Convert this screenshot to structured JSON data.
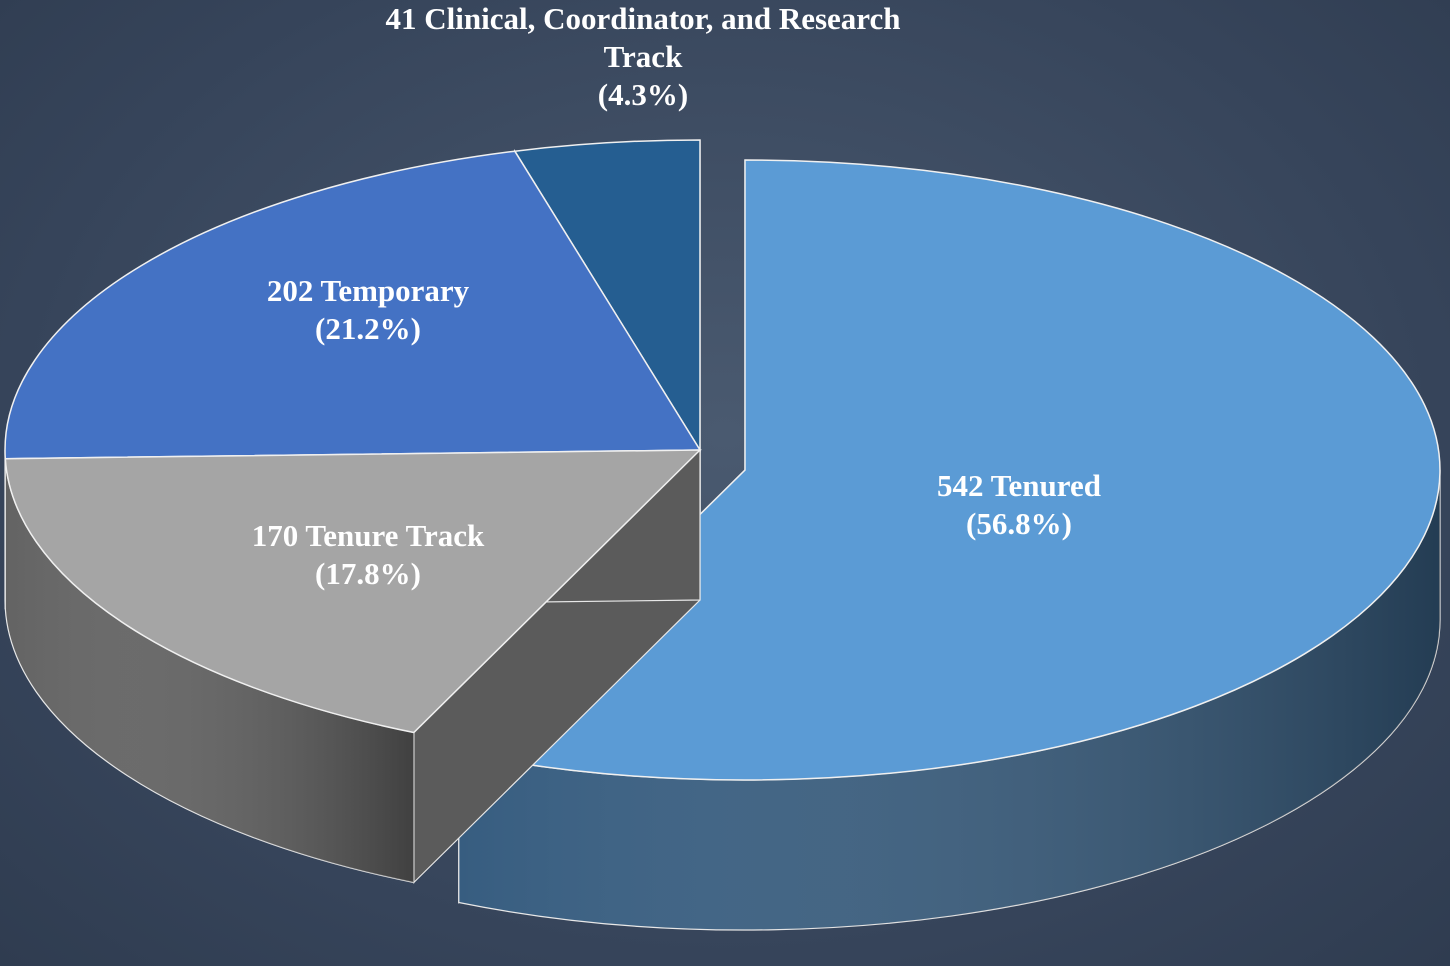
{
  "chart_data": {
    "type": "pie3d",
    "values": [
      542,
      170,
      202,
      41
    ],
    "value_labels": [
      "542 Tenured",
      "170 Tenure Track",
      "202 Temporary",
      "41 Clinical, Coordinator, and Research Track"
    ],
    "percents": [
      56.8,
      17.8,
      21.2,
      4.3
    ],
    "percent_labels": [
      "(56.8%)",
      "(17.8%)",
      "(21.2%)",
      "(4.3%)"
    ],
    "colors": [
      "#5b9bd5",
      "#a5a5a5",
      "#4472c4",
      "#255e91"
    ],
    "exploded": [
      0
    ]
  }
}
